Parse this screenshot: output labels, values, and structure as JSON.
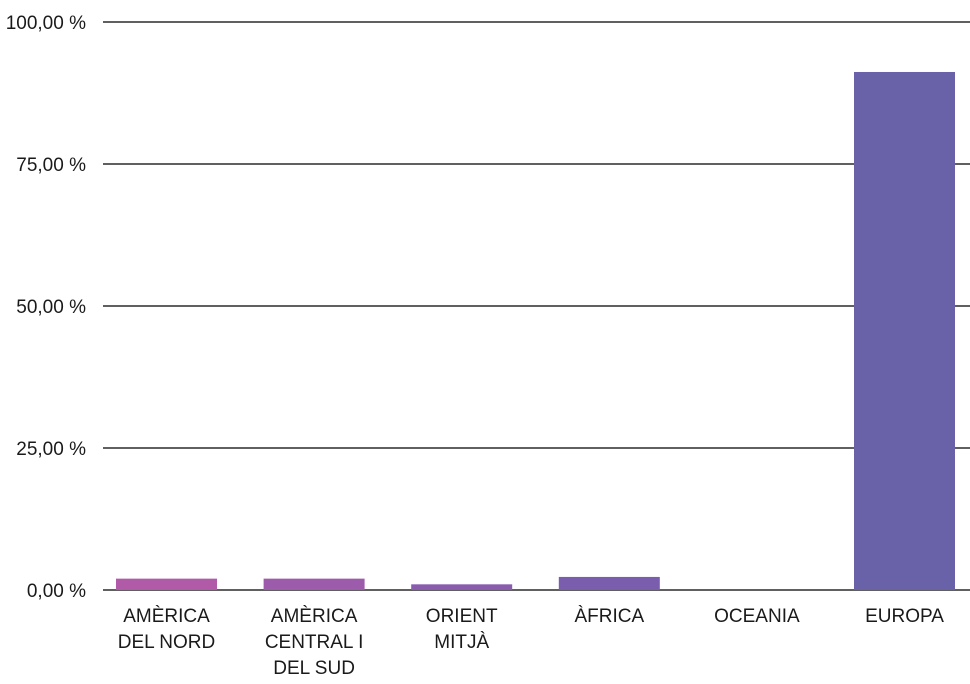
{
  "chart_data": {
    "type": "bar",
    "categories": [
      [
        "AMÈRICA",
        "DEL NORD"
      ],
      [
        "AMÈRICA",
        "CENTRAL I",
        "DEL SUD"
      ],
      [
        "ORIENT",
        "MITJÀ"
      ],
      [
        "ÀFRICA"
      ],
      [
        "OCEANIA"
      ],
      [
        "EUROPA"
      ]
    ],
    "values": [
      2.0,
      2.0,
      1.0,
      2.3,
      0.0,
      91.2
    ],
    "bar_colors": [
      "#b15aa8",
      "#9d5bac",
      "#8a5cae",
      "#7a5dad",
      "#7060ab",
      "#6a62a9"
    ],
    "ylim": [
      0,
      100
    ],
    "yticks": [
      0,
      25,
      50,
      75,
      100
    ],
    "ytick_labels": [
      "0,00 %",
      "25,00 %",
      "50,00 %",
      "75,00 %",
      "100,00 %"
    ],
    "grid": true,
    "title": "",
    "xlabel": "",
    "ylabel": ""
  }
}
